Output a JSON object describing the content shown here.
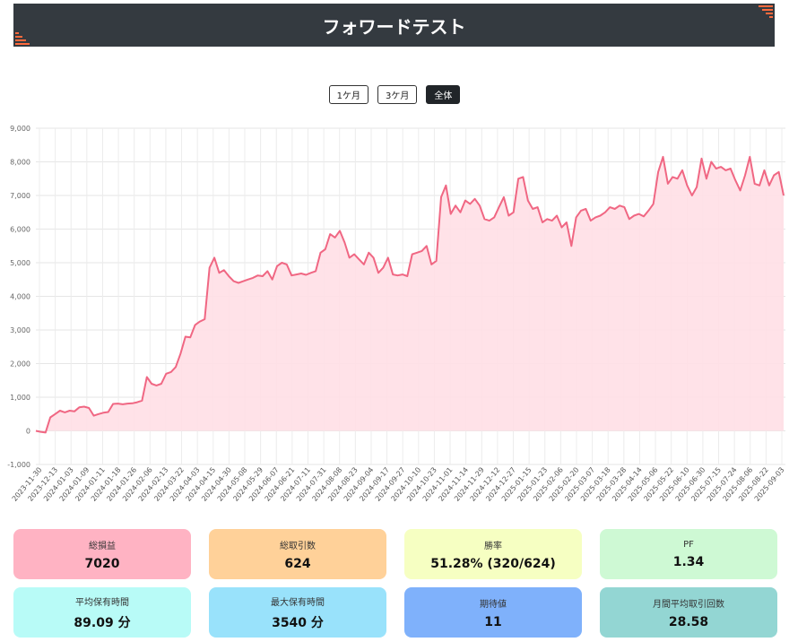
{
  "page": {
    "title": "フォワードテスト"
  },
  "range_tabs": [
    {
      "label": "1ケ月",
      "active": false
    },
    {
      "label": "3ケ月",
      "active": false
    },
    {
      "label": "全体",
      "active": true
    }
  ],
  "colors": {
    "header_bg": "#343a40",
    "accent": "#ff6a3d",
    "line": "#f06783",
    "fill": "#ffdfe6"
  },
  "chart_data": {
    "type": "area",
    "title": "",
    "xlabel": "",
    "ylabel": "",
    "ylim": [
      -1000,
      9000
    ],
    "y_ticks": [
      -1000,
      0,
      1000,
      2000,
      3000,
      4000,
      5000,
      6000,
      7000,
      8000,
      9000
    ],
    "y_tick_labels": [
      "-1,000",
      "0",
      "1,000",
      "2,000",
      "3,000",
      "4,000",
      "5,000",
      "6,000",
      "7,000",
      "8,000",
      "9,000"
    ],
    "x_tick_labels": [
      "2023-11-30",
      "2023-12-13",
      "2024-01-03",
      "2024-01-09",
      "2024-01-11",
      "2024-01-18",
      "2024-01-26",
      "2024-02-06",
      "2024-02-13",
      "2024-03-22",
      "2024-04-03",
      "2024-04-15",
      "2024-04-30",
      "2024-05-08",
      "2024-05-29",
      "2024-06-07",
      "2024-06-21",
      "2024-07-11",
      "2024-07-31",
      "2024-08-08",
      "2024-08-23",
      "2024-09-04",
      "2024-09-17",
      "2024-09-27",
      "2024-10-10",
      "2024-10-23",
      "2024-11-01",
      "2024-11-14",
      "2024-11-29",
      "2024-12-12",
      "2024-12-27",
      "2025-01-15",
      "2025-01-23",
      "2025-02-06",
      "2025-02-20",
      "2025-03-07",
      "2025-03-18",
      "2025-03-28",
      "2025-04-14",
      "2025-05-06",
      "2025-05-22",
      "2025-06-10",
      "2025-06-30",
      "2025-07-15",
      "2025-07-24",
      "2025-08-06",
      "2025-08-22",
      "2025-09-03"
    ],
    "grid": true,
    "legend": "none",
    "series": [
      {
        "values": [
          0,
          -30,
          -50,
          400,
          500,
          600,
          550,
          600,
          580,
          700,
          720,
          680,
          450,
          500,
          540,
          560,
          800,
          810,
          790,
          810,
          820,
          850,
          900,
          1600,
          1400,
          1350,
          1400,
          1700,
          1750,
          1900,
          2300,
          2800,
          2780,
          3150,
          3250,
          3320,
          4850,
          5150,
          4700,
          4780,
          4600,
          4450,
          4400,
          4450,
          4500,
          4550,
          4620,
          4600,
          4750,
          4500,
          4900,
          5000,
          4950,
          4620,
          4650,
          4680,
          4640,
          4700,
          4750,
          5300,
          5400,
          5850,
          5750,
          5950,
          5600,
          5150,
          5250,
          5100,
          4950,
          5300,
          5150,
          4700,
          4850,
          5150,
          4650,
          4620,
          4650,
          4600,
          5250,
          5300,
          5350,
          5500,
          4950,
          5050,
          6950,
          7300,
          6450,
          6700,
          6500,
          6850,
          6750,
          6900,
          6700,
          6300,
          6250,
          6350,
          6650,
          6950,
          6400,
          6500,
          7500,
          7550,
          6850,
          6600,
          6650,
          6200,
          6300,
          6250,
          6400,
          6050,
          6200,
          5500,
          6350,
          6550,
          6600,
          6250,
          6350,
          6400,
          6500,
          6650,
          6600,
          6700,
          6650,
          6300,
          6400,
          6450,
          6380,
          6550,
          6750,
          7700,
          8150,
          7350,
          7550,
          7500,
          7750,
          7300,
          7000,
          7250,
          8100,
          7500,
          8000,
          7800,
          7850,
          7750,
          7800,
          7450,
          7150,
          7600,
          8150,
          7350,
          7300,
          7750,
          7300,
          7600,
          7700,
          7000
        ]
      }
    ]
  },
  "stats": [
    {
      "label": "総損益",
      "value": "7020",
      "color": "#ffb3c3"
    },
    {
      "label": "総取引数",
      "value": "624",
      "color": "#ffd199"
    },
    {
      "label": "勝率",
      "value": "51.28% (320/624)",
      "color": "#f6ffc2"
    },
    {
      "label": "PF",
      "value": "1.34",
      "color": "#cef9d4"
    },
    {
      "label": "平均保有時間",
      "value": "89.09 分",
      "color": "#b8fbf7"
    },
    {
      "label": "最大保有時間",
      "value": "3540 分",
      "color": "#99e2fb"
    },
    {
      "label": "期待値",
      "value": "11",
      "color": "#7fb1fb"
    },
    {
      "label": "月間平均取引回数",
      "value": "28.58",
      "color": "#93d6d3"
    }
  ]
}
